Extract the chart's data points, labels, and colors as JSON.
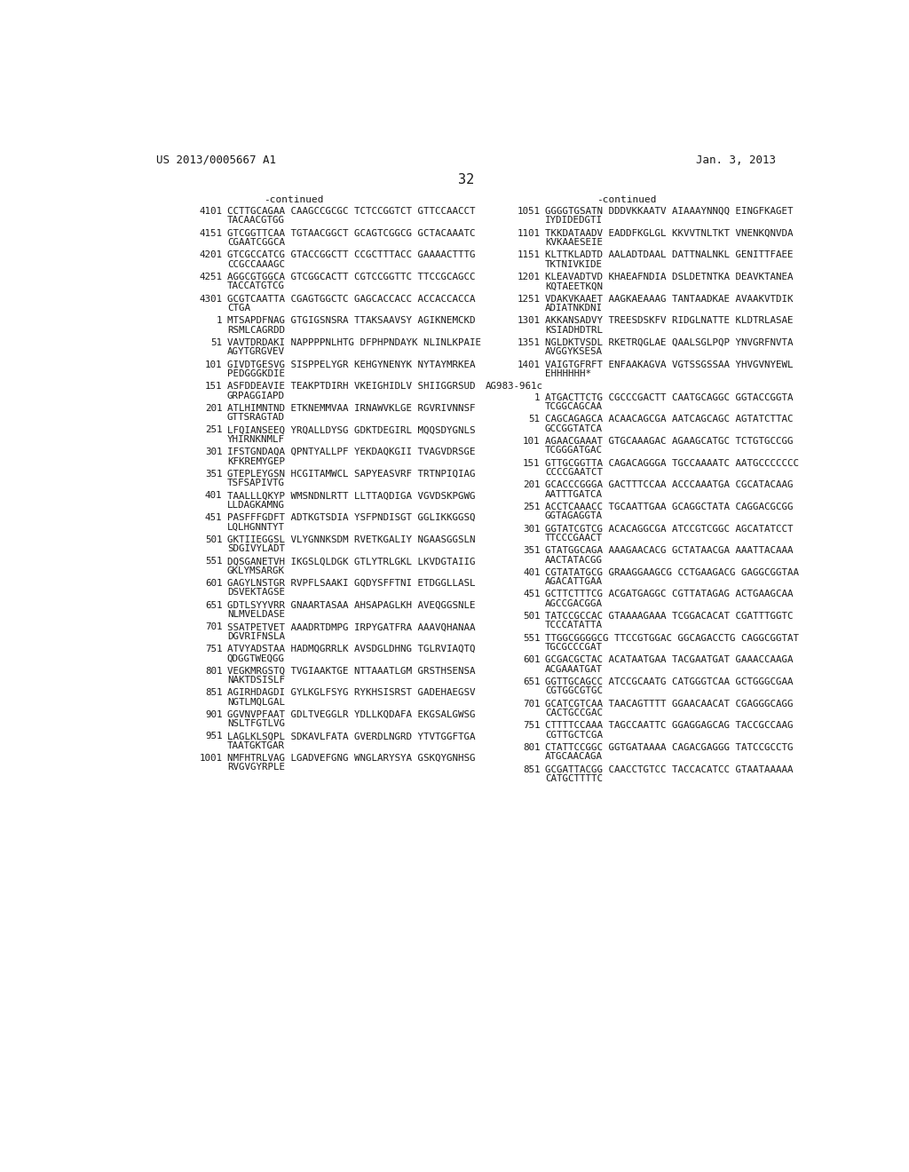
{
  "background_color": "#ffffff",
  "page_number": "32",
  "header_left": "US 2013/0005667 A1",
  "header_right": "Jan. 3, 2013",
  "left_column": {
    "continued_label": "-continued",
    "entries": [
      {
        "num": "4101",
        "seq": "CCTTGCAGAA CAAGCCGCGC TCTCCGGTCT GTTCCAACCT",
        "cont": "TACAACGTGG"
      },
      {
        "num": "4151",
        "seq": "GTCGGTTCAA TGTAACGGCT GCAGTCGGCG GCTACAAATC",
        "cont": "CGAATCGGCA"
      },
      {
        "num": "4201",
        "seq": "GTCGCCATCG GTACCGGCTT CCGCTTTACC GAAAACTTTG",
        "cont": "CCGCCAAAGC"
      },
      {
        "num": "4251",
        "seq": "AGGCGTGGCA GTCGGCACTT CGTCCGGTTC TTCCGCAGCC",
        "cont": "TACCATGTCG"
      },
      {
        "num": "4301",
        "seq": "GCGTCAATTA CGAGTGGCTC GAGCACCACC ACCACCACCA",
        "cont": "CTGA"
      },
      {
        "num": "1",
        "seq": "MTSAPDFNAG GTGIGSNSRA TTAKSAAVSY AGIKNEMCKD",
        "cont": "RSMLCAGRDD"
      },
      {
        "num": "51",
        "seq": "VAVTDRDAKI NAPPPPNLHTG DFPHPNDAYK NLINLKPAIE",
        "cont": "AGYTGRGVEV"
      },
      {
        "num": "101",
        "seq": "GIVDTGESVG SISPPELYGR KEHGYNENYK NYTAYMRKEA",
        "cont": "PEDGGGKDIE"
      },
      {
        "num": "151",
        "seq": "ASFDDEAVIE TEAKPTDIRH VKEIGHIDLV SHIIGGRSUD",
        "cont": "GRPAGGIAPD"
      },
      {
        "num": "201",
        "seq": "ATLHIMNTND ETKNEMMVAA IRNAWVKLGE RGVRIVNNSF",
        "cont": "GTTSRAGTAD"
      },
      {
        "num": "251",
        "seq": "LFQIANSEEQ YRQALLDYSG GDKTDEGIRL MQQSDYGNLS",
        "cont": "YHIRNKNMLF"
      },
      {
        "num": "301",
        "seq": "IFSTGNDAQA QPNTYALLPF YEKDAQKGII TVAGVDRSGE",
        "cont": "KFKREMYGEP"
      },
      {
        "num": "351",
        "seq": "GTEPLEYGSN HCGITAMWCL SAPYEASVRF TRTNPIQIAG",
        "cont": "TSFSAPIVTG"
      },
      {
        "num": "401",
        "seq": "TAALLLQKYP WMSNDNLRTT LLTTAQDIGA VGVDSKPGWG",
        "cont": "LLDAGKAMNG"
      },
      {
        "num": "451",
        "seq": "PASFFFGDFT ADTKGTSDIA YSFPNDISGT GGLIKKGGSQ",
        "cont": "LQLHGNNTYT"
      },
      {
        "num": "501",
        "seq": "GKTIIEGGSL VLYGNNKSDM RVETKGALIY NGAASGGSLN",
        "cont": "SDGIVYLADT"
      },
      {
        "num": "551",
        "seq": "DQSGANETVH IKGSLQLDGK GTLYTRLGKL LKVDGTAIIG",
        "cont": "GKLYMSARGK"
      },
      {
        "num": "601",
        "seq": "GAGYLNSTGR RVPFLSAAKI GQDYSFFTNI ETDGGLLASL",
        "cont": "DSVEKTAGSE"
      },
      {
        "num": "651",
        "seq": "GDTLSYYVRR GNAARTASAA AHSAPAGLKH AVEQGGSNLE",
        "cont": "NLMVELDASE"
      },
      {
        "num": "701",
        "seq": "SSATPETVET AAADRTDMPG IRPYGATFRA AAAVQHANAA",
        "cont": "DGVRIFNSLA"
      },
      {
        "num": "751",
        "seq": "ATVYADSTAA HADMQGRRLK AVSDGLDHNG TGLRVIAQTQ",
        "cont": "QDGGTWEQGG"
      },
      {
        "num": "801",
        "seq": "VEGKMRGSTQ TVGIAAKTGE NTTAAATLGM GRSTHSENSA",
        "cont": "NAKTDSISLF"
      },
      {
        "num": "851",
        "seq": "AGIRHDAGDI GYLKGLFSYG RYKHSISRST GADEHAEGSV",
        "cont": "NGTLMQLGAL"
      },
      {
        "num": "901",
        "seq": "GGVNVPFAAT GDLTVEGGLR YDLLKQDAFA EKGSALGWSG",
        "cont": "NSLTFGTLVG"
      },
      {
        "num": "951",
        "seq": "LAGLKLSQPL SDKAVLFATA GVERDLNGRD YTVTGGFTGA",
        "cont": "TAATGKTGAR"
      },
      {
        "num": "1001",
        "seq": "NMFHTRLVAG LGADVEFGNG WNGLARYSYA GSKQYGNHSG",
        "cont": "RVGVGYRPLE"
      }
    ]
  },
  "right_column": {
    "continued_label": "-continued",
    "entries": [
      {
        "num": "1051",
        "seq": "GGGGTGSATN DDDVKKAATV AIAAAYNNQQ EINGFKAGET",
        "cont": "IYDIDEDGTI"
      },
      {
        "num": "1101",
        "seq": "TKKDATAADV EADDFKGLGL KKVVTNLTKT VNENKQNVDA",
        "cont": "KVKAAESEIE"
      },
      {
        "num": "1151",
        "seq": "KLTTKLADTD AALADTDAAL DATTNALNKL GENITTFAEE",
        "cont": "TKTNIVKIDE"
      },
      {
        "num": "1201",
        "seq": "KLEAVADTVD KHAEAFNDIA DSLDETNTKA DEAVKTANEA",
        "cont": "KQTAEETKQN"
      },
      {
        "num": "1251",
        "seq": "VDAKVKAAET AAGKAEAAAG TANTAADKAE AVAAKVTDIK",
        "cont": "ADIATNKDNI"
      },
      {
        "num": "1301",
        "seq": "AKKANSADVY TREESDSKFV RIDGLNATTE KLDTRLASAE",
        "cont": "KSIADHDTRL"
      },
      {
        "num": "1351",
        "seq": "NGLDKTVSDL RKETRQGLAE QAALSGLPQP YNVGRFNVTA",
        "cont": "AVGGYKSESA"
      },
      {
        "num": "1401",
        "seq": "VAIGTGFRFT ENFAAKAGVA VGTSSGSSAA YHVGVNYEWL",
        "cont": "EHHHHHH*"
      },
      {
        "num": "AG983-961c",
        "seq": null,
        "cont": null
      },
      {
        "num": "1",
        "seq": "ATGACTTCTG CGCCCGACTT CAATGCAGGC GGTACCGGTA",
        "cont": "TCGGCAGCAA"
      },
      {
        "num": "51",
        "seq": "CAGCAGAGCA ACAACAGCGA AATCAGCAGC AGTATCTTAC",
        "cont": "GCCGGTATCA"
      },
      {
        "num": "101",
        "seq": "AGAACGAAAT GTGCAAAGAC AGAAGCATGC TCTGTGCCGG",
        "cont": "TCGGGATGAC"
      },
      {
        "num": "151",
        "seq": "GTTGCGGTTA CAGACAGGGA TGCCAAAATC AATGCCCCCCC",
        "cont": "CCCCGAATCT"
      },
      {
        "num": "201",
        "seq": "GCACCCGGGA GACTTTCCAA ACCCAAATGA CGCATACAAG",
        "cont": "AATTTGATCA"
      },
      {
        "num": "251",
        "seq": "ACCTCAAACC TGCAATTGAA GCAGGCTATA CAGGACGCGG",
        "cont": "GGTAGAGGTA"
      },
      {
        "num": "301",
        "seq": "GGTATCGTCG ACACAGGCGA ATCCGTCGGC AGCATATCCT",
        "cont": "TTCCCGAACT"
      },
      {
        "num": "351",
        "seq": "GTATGGCAGA AAAGAACACG GCTATAACGA AAATTACAAA",
        "cont": "AACTATACGG"
      },
      {
        "num": "401",
        "seq": "CGTATATGCG GRAAGGAAGCG CCTGAAGACG GAGGCGGTAA",
        "cont": "AGACATTGAA"
      },
      {
        "num": "451",
        "seq": "GCTTCTTTCG ACGATGAGGC CGTTATAGAG ACTGAAGCAA",
        "cont": "AGCCGACGGA"
      },
      {
        "num": "501",
        "seq": "TATCCGCCAC GTAAAAGAAA TCGGACACAT CGATTTGGTC",
        "cont": "TCCCATATTA"
      },
      {
        "num": "551",
        "seq": "TTGGCGGGGCG TTCCGTGGAC GGCAGACCTG CAGGCGGTAT",
        "cont": "TGCGCCCGAT"
      },
      {
        "num": "601",
        "seq": "GCGACGCTAC ACATAATGAA TACGAATGAT GAAACCAAGA",
        "cont": "ACGAAATGAT"
      },
      {
        "num": "651",
        "seq": "GGTTGCAGCC ATCCGCAATG CATGGGTCAA GCTGGGCGAA",
        "cont": "CGTGGCGTGC"
      },
      {
        "num": "701",
        "seq": "GCATCGTCAA TAACAGTTTT GGAACAACAT CGAGGGCAGG",
        "cont": "CACTGCCGAC"
      },
      {
        "num": "751",
        "seq": "CTTTTCCAAA TAGCCAATTC GGAGGAGCAG TACCGCCAAG",
        "cont": "CGTTGCTCGA"
      },
      {
        "num": "801",
        "seq": "CTATTCCGGC GGTGATAAAA CAGACGAGGG TATCCGCCTG",
        "cont": "ATGCAACAGA"
      },
      {
        "num": "851",
        "seq": "GCGATTACGG CAACCTGTCC TACCACATCC GTAATAAAAA",
        "cont": "CATGCTTTТC"
      }
    ]
  }
}
